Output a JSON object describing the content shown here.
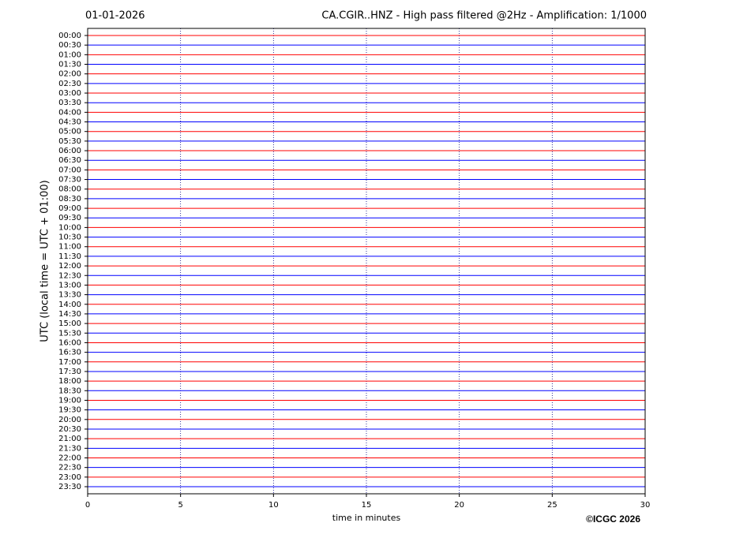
{
  "chart_data": {
    "type": "helicorder",
    "title_left": "01-01-2026",
    "title": "CA.CGIR..HNZ - High pass filtered @2Hz - Amplification: 1/1000",
    "categories": [
      "00:00",
      "00:30",
      "01:00",
      "01:30",
      "02:00",
      "02:30",
      "03:00",
      "03:30",
      "04:00",
      "04:30",
      "05:00",
      "05:30",
      "06:00",
      "06:30",
      "07:00",
      "07:30",
      "08:00",
      "08:30",
      "09:00",
      "09:30",
      "10:00",
      "10:30",
      "11:00",
      "11:30",
      "12:00",
      "12:30",
      "13:00",
      "13:30",
      "14:00",
      "14:30",
      "15:00",
      "15:30",
      "16:00",
      "16:30",
      "17:00",
      "17:30",
      "18:00",
      "18:30",
      "19:00",
      "19:30",
      "20:00",
      "20:30",
      "21:00",
      "21:30",
      "22:00",
      "22:30",
      "23:00",
      "23:30"
    ],
    "colors": [
      "#ff0000",
      "#0000ff"
    ],
    "xlim": [
      0,
      30
    ],
    "xticks": [
      0,
      5,
      10,
      15,
      20,
      25,
      30
    ],
    "grid": true,
    "x_label": "time in minutes",
    "y_label": "UTC (local time = UTC + 01:00)",
    "copyright": "©ICGC 2026"
  }
}
